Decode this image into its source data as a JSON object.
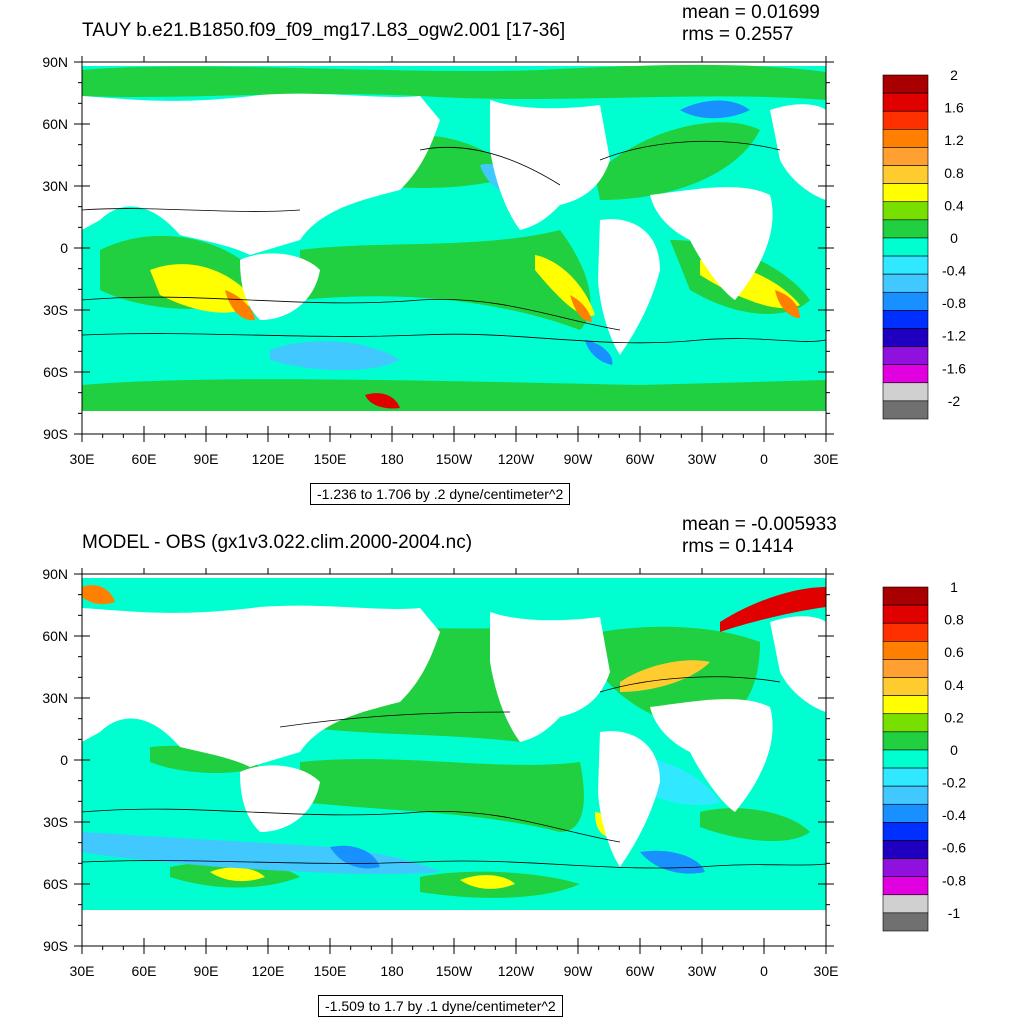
{
  "panels": [
    {
      "title": "TAUY b.e21.B1850.f09_f09_mg17.L83_ogw2.001 [17-36]",
      "mean_label": "mean = 0.01699",
      "rms_label": "rms = 0.2557",
      "range_label": "-1.236 to 1.706 by .2 dyne/centimeter^2",
      "lat_ticks": [
        "90N",
        "60N",
        "30N",
        "0",
        "30S",
        "60S",
        "90S"
      ],
      "lon_ticks": [
        "30E",
        "60E",
        "90E",
        "120E",
        "150E",
        "180",
        "150W",
        "120W",
        "90W",
        "60W",
        "30W",
        "0",
        "30E"
      ],
      "colorbar_labels": [
        "2",
        "1.6",
        "1.2",
        "0.8",
        "0.4",
        "0",
        "-0.4",
        "-0.8",
        "-1.2",
        "-1.6",
        "-2"
      ],
      "colorbar_colors": [
        "#a80000",
        "#e00000",
        "#ff3000",
        "#ff8000",
        "#ffa030",
        "#ffcc30",
        "#ffff00",
        "#78e000",
        "#20d040",
        "#00ffd0",
        "#30e8ff",
        "#40c8ff",
        "#1890ff",
        "#0030ff",
        "#2000c0",
        "#9010e0",
        "#e000e0",
        "#d0d0d0",
        "#707070"
      ]
    },
    {
      "title": "MODEL - OBS (gx1v3.022.clim.2000-2004.nc)",
      "mean_label": "mean = -0.005933",
      "rms_label": "rms = 0.1414",
      "range_label": "-1.509 to 1.7 by .1 dyne/centimeter^2",
      "lat_ticks": [
        "90N",
        "60N",
        "30N",
        "0",
        "30S",
        "60S",
        "90S"
      ],
      "lon_ticks": [
        "30E",
        "60E",
        "90E",
        "120E",
        "150E",
        "180",
        "150W",
        "120W",
        "90W",
        "60W",
        "30W",
        "0",
        "30E"
      ],
      "colorbar_labels": [
        "1",
        "0.8",
        "0.6",
        "0.4",
        "0.2",
        "0",
        "-0.2",
        "-0.4",
        "-0.6",
        "-0.8",
        "-1"
      ],
      "colorbar_colors": [
        "#a80000",
        "#e00000",
        "#ff3000",
        "#ff8000",
        "#ffa030",
        "#ffcc30",
        "#ffff00",
        "#78e000",
        "#20d040",
        "#00ffd0",
        "#30e8ff",
        "#40c8ff",
        "#1890ff",
        "#0030ff",
        "#2000c0",
        "#9010e0",
        "#e000e0",
        "#d0d0d0",
        "#707070"
      ]
    }
  ],
  "colors": {
    "ocean_neutral": "#00ffd0",
    "ocean_positive": "#20d040",
    "land": "#ffffff"
  }
}
